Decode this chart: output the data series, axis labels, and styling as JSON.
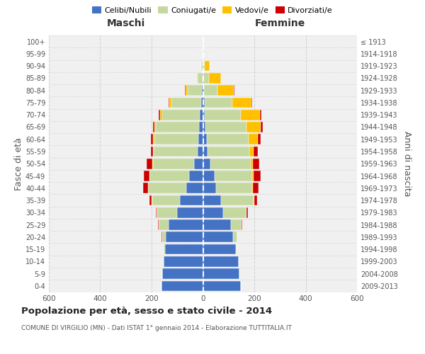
{
  "age_groups": [
    "0-4",
    "5-9",
    "10-14",
    "15-19",
    "20-24",
    "25-29",
    "30-34",
    "35-39",
    "40-44",
    "45-49",
    "50-54",
    "55-59",
    "60-64",
    "65-69",
    "70-74",
    "75-79",
    "80-84",
    "85-89",
    "90-94",
    "95-99",
    "100+"
  ],
  "birth_years": [
    "2009-2013",
    "2004-2008",
    "1999-2003",
    "1994-1998",
    "1989-1993",
    "1984-1988",
    "1979-1983",
    "1974-1978",
    "1969-1973",
    "1964-1968",
    "1959-1963",
    "1954-1958",
    "1949-1953",
    "1944-1948",
    "1939-1943",
    "1934-1938",
    "1929-1933",
    "1924-1928",
    "1919-1923",
    "1914-1918",
    "≤ 1913"
  ],
  "maschi": {
    "celibi": [
      162,
      158,
      152,
      148,
      145,
      135,
      100,
      90,
      65,
      55,
      35,
      20,
      18,
      15,
      12,
      8,
      4,
      2,
      1,
      0,
      0
    ],
    "coniugati": [
      0,
      0,
      1,
      4,
      14,
      38,
      80,
      108,
      148,
      152,
      160,
      172,
      172,
      168,
      148,
      115,
      55,
      18,
      5,
      1,
      0
    ],
    "vedovi": [
      0,
      0,
      0,
      0,
      0,
      0,
      0,
      1,
      1,
      1,
      1,
      2,
      4,
      6,
      8,
      8,
      8,
      4,
      1,
      0,
      0
    ],
    "divorziati": [
      0,
      0,
      0,
      0,
      1,
      2,
      3,
      10,
      18,
      22,
      22,
      10,
      8,
      5,
      5,
      4,
      2,
      0,
      0,
      0,
      0
    ]
  },
  "femmine": {
    "nubili": [
      148,
      142,
      138,
      128,
      118,
      108,
      78,
      70,
      50,
      45,
      28,
      18,
      15,
      10,
      8,
      6,
      4,
      2,
      1,
      0,
      0
    ],
    "coniugate": [
      0,
      0,
      1,
      4,
      16,
      42,
      92,
      128,
      142,
      148,
      158,
      162,
      162,
      160,
      140,
      108,
      52,
      22,
      6,
      0,
      0
    ],
    "vedove": [
      0,
      0,
      0,
      0,
      0,
      1,
      1,
      1,
      2,
      4,
      8,
      18,
      38,
      55,
      75,
      75,
      65,
      45,
      18,
      3,
      1
    ],
    "divorziate": [
      0,
      0,
      0,
      0,
      1,
      2,
      4,
      12,
      22,
      28,
      25,
      15,
      10,
      8,
      5,
      4,
      2,
      1,
      0,
      0,
      0
    ]
  },
  "colors": {
    "celibi": "#4472c4",
    "coniugati": "#c5d8a0",
    "vedovi": "#ffc000",
    "divorziati": "#cc0000"
  },
  "xlim": 600,
  "title": "Popolazione per età, sesso e stato civile - 2014",
  "subtitle": "COMUNE DI VIRGILIO (MN) - Dati ISTAT 1° gennaio 2014 - Elaborazione TUTTITALIA.IT",
  "ylabel_left": "Fasce di età",
  "ylabel_right": "Anni di nascita",
  "xlabel_left": "Maschi",
  "xlabel_right": "Femmine",
  "bg_color": "#f0f0f0",
  "grid_color": "#cccccc"
}
